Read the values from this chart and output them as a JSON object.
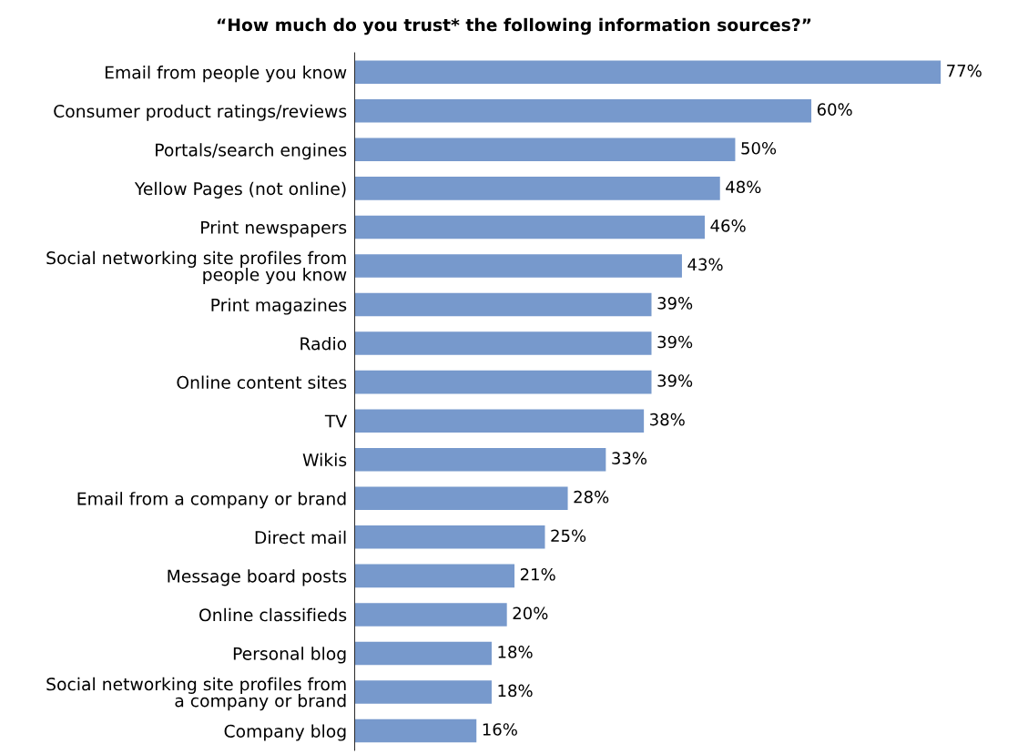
{
  "chart_data": {
    "type": "bar",
    "orientation": "horizontal",
    "title": "“How much do you trust* the following information sources?”",
    "categories": [
      "Email from people you know",
      "Consumer product ratings/reviews",
      "Portals/search engines",
      "Yellow Pages (not online)",
      "Print newspapers",
      "Social networking site profiles from\npeople you know",
      "Print magazines",
      "Radio",
      "Online content sites",
      "TV",
      "Wikis",
      "Email from a company or brand",
      "Direct mail",
      "Message board posts",
      "Online classifieds",
      "Personal blog",
      "Social networking site profiles from\na company or brand",
      "Company blog"
    ],
    "values": [
      77,
      60,
      50,
      48,
      46,
      43,
      39,
      39,
      39,
      38,
      33,
      28,
      25,
      21,
      20,
      18,
      18,
      16
    ],
    "value_labels": [
      "77%",
      "60%",
      "50%",
      "48%",
      "46%",
      "43%",
      "39%",
      "39%",
      "39%",
      "38%",
      "33%",
      "28%",
      "25%",
      "21%",
      "20%",
      "18%",
      "18%",
      "16%"
    ],
    "color": "#7799cc",
    "grid": false,
    "legend": false,
    "tick_labels": "y"
  }
}
